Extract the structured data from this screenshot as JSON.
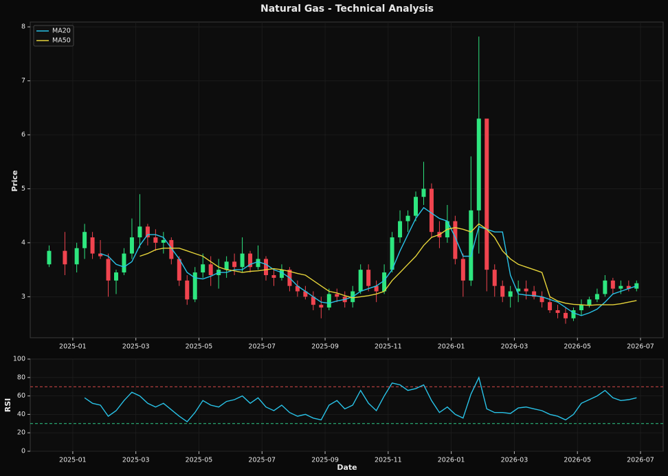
{
  "chart_data": [
    {
      "type": "candlestick",
      "title": "Natural Gas - Technical Analysis",
      "ylabel": "Price",
      "x": [
        "2024-12",
        "2024-12",
        "2025-01",
        "2025-01",
        "2025-01",
        "2025-01",
        "2025-02",
        "2025-02",
        "2025-02",
        "2025-02",
        "2025-03",
        "2025-03",
        "2025-03",
        "2025-03",
        "2025-04",
        "2025-04",
        "2025-04",
        "2025-04",
        "2025-05",
        "2025-05",
        "2025-05",
        "2025-05",
        "2025-06",
        "2025-06",
        "2025-06",
        "2025-06",
        "2025-07",
        "2025-07",
        "2025-07",
        "2025-07",
        "2025-08",
        "2025-08",
        "2025-08",
        "2025-08",
        "2025-09",
        "2025-09",
        "2025-09",
        "2025-09",
        "2025-10",
        "2025-10",
        "2025-10",
        "2025-10",
        "2025-11",
        "2025-11",
        "2025-11",
        "2025-11",
        "2025-12",
        "2025-12",
        "2025-12",
        "2025-12",
        "2026-01",
        "2026-01",
        "2026-01",
        "2026-01",
        "2026-02",
        "2026-02",
        "2026-02",
        "2026-02",
        "2026-03",
        "2026-03",
        "2026-03",
        "2026-03",
        "2026-04",
        "2026-04",
        "2026-04",
        "2026-04",
        "2026-05",
        "2026-05",
        "2026-05",
        "2026-05",
        "2026-06",
        "2026-06",
        "2026-06",
        "2026-06"
      ],
      "open": [
        3.6,
        3.85,
        3.6,
        3.9,
        4.1,
        3.8,
        3.7,
        3.3,
        3.45,
        3.8,
        4.1,
        4.3,
        4.1,
        4.0,
        4.05,
        3.7,
        3.3,
        2.95,
        3.45,
        3.6,
        3.4,
        3.5,
        3.65,
        3.55,
        3.8,
        3.55,
        3.7,
        3.4,
        3.35,
        3.5,
        3.2,
        3.1,
        3.0,
        2.85,
        2.8,
        3.05,
        3.0,
        2.9,
        3.1,
        3.5,
        3.2,
        3.1,
        3.5,
        4.1,
        4.4,
        4.5,
        4.85,
        5.0,
        4.2,
        4.1,
        4.4,
        3.7,
        3.3,
        4.6,
        6.3,
        3.5,
        3.2,
        3.0,
        3.1,
        3.15,
        3.1,
        3.0,
        2.9,
        2.75,
        2.7,
        2.6,
        2.75,
        2.85,
        2.95,
        3.05,
        3.3,
        3.15,
        3.2,
        3.15
      ],
      "high": [
        3.95,
        4.2,
        4.0,
        4.35,
        4.2,
        4.05,
        3.8,
        3.5,
        3.9,
        4.45,
        4.9,
        4.35,
        4.25,
        4.2,
        4.1,
        3.75,
        3.4,
        3.55,
        3.8,
        3.75,
        3.7,
        3.75,
        3.8,
        4.1,
        3.85,
        3.95,
        3.75,
        3.5,
        3.6,
        3.55,
        3.3,
        3.2,
        3.1,
        3.0,
        3.15,
        3.15,
        3.1,
        3.2,
        3.6,
        3.6,
        3.3,
        3.6,
        4.2,
        4.6,
        4.6,
        4.95,
        5.5,
        5.1,
        4.4,
        4.7,
        4.5,
        3.8,
        5.6,
        7.82,
        6.3,
        3.6,
        3.3,
        3.2,
        3.3,
        3.3,
        3.2,
        3.1,
        3.0,
        2.85,
        2.8,
        2.8,
        2.95,
        3.0,
        3.15,
        3.4,
        3.35,
        3.3,
        3.3,
        3.3
      ],
      "low": [
        3.55,
        3.4,
        3.45,
        3.7,
        3.7,
        3.7,
        3.0,
        3.05,
        3.4,
        3.7,
        3.9,
        3.95,
        3.85,
        3.8,
        3.6,
        3.2,
        2.85,
        2.9,
        3.35,
        3.2,
        3.15,
        3.35,
        3.4,
        3.45,
        3.45,
        3.5,
        3.3,
        3.2,
        3.3,
        3.1,
        3.0,
        2.95,
        2.75,
        2.6,
        2.75,
        2.9,
        2.8,
        2.8,
        3.05,
        3.1,
        2.9,
        3.05,
        3.45,
        4.0,
        4.2,
        4.4,
        4.7,
        4.1,
        3.9,
        4.0,
        3.6,
        3.0,
        3.2,
        3.8,
        3.1,
        3.0,
        2.9,
        2.8,
        2.9,
        2.95,
        2.95,
        2.8,
        2.7,
        2.6,
        2.5,
        2.55,
        2.65,
        2.8,
        2.9,
        3.0,
        3.05,
        3.05,
        3.1,
        3.1
      ],
      "close": [
        3.85,
        3.6,
        3.9,
        4.2,
        3.8,
        3.75,
        3.3,
        3.45,
        3.8,
        4.1,
        4.3,
        4.1,
        4.0,
        4.05,
        3.7,
        3.3,
        2.95,
        3.45,
        3.6,
        3.4,
        3.5,
        3.65,
        3.55,
        3.8,
        3.55,
        3.7,
        3.4,
        3.35,
        3.5,
        3.2,
        3.1,
        3.0,
        2.85,
        2.8,
        3.05,
        3.0,
        2.9,
        3.1,
        3.5,
        3.2,
        3.1,
        3.45,
        4.1,
        4.4,
        4.5,
        4.85,
        5.0,
        4.2,
        4.1,
        4.4,
        3.7,
        3.3,
        4.6,
        6.3,
        3.5,
        3.2,
        3.0,
        3.1,
        3.15,
        3.1,
        3.0,
        2.9,
        2.75,
        2.7,
        2.6,
        2.75,
        2.85,
        2.95,
        3.05,
        3.3,
        3.15,
        3.2,
        3.15,
        3.25
      ],
      "up_color": "#2ee67f",
      "down_color": "#f0444f",
      "series": [
        {
          "name": "MA20",
          "color": "#29c3e8",
          "values": [
            null,
            null,
            null,
            null,
            null,
            3.8,
            3.75,
            3.6,
            3.55,
            3.65,
            3.95,
            4.15,
            4.15,
            4.1,
            3.9,
            3.7,
            3.45,
            3.35,
            3.33,
            3.38,
            3.45,
            3.45,
            3.5,
            3.5,
            3.6,
            3.65,
            3.6,
            3.5,
            3.45,
            3.35,
            3.2,
            3.1,
            3.0,
            2.9,
            2.88,
            2.92,
            2.95,
            3.0,
            3.1,
            3.15,
            3.2,
            3.3,
            3.5,
            3.85,
            4.15,
            4.45,
            4.65,
            4.55,
            4.45,
            4.4,
            4.1,
            3.75,
            3.75,
            4.3,
            4.25,
            4.2,
            4.2,
            3.4,
            3.05,
            3.03,
            3.02,
            3.0,
            2.95,
            2.9,
            2.8,
            2.7,
            2.65,
            2.7,
            2.77,
            2.9,
            3.05,
            3.1,
            3.15,
            3.2
          ]
        },
        {
          "name": "MA50",
          "color": "#e6d43a",
          "values": [
            null,
            null,
            null,
            null,
            null,
            null,
            null,
            null,
            null,
            null,
            3.75,
            3.8,
            3.87,
            3.9,
            3.9,
            3.9,
            3.85,
            3.8,
            3.75,
            3.65,
            3.55,
            3.5,
            3.48,
            3.45,
            3.47,
            3.48,
            3.5,
            3.52,
            3.5,
            3.47,
            3.43,
            3.4,
            3.3,
            3.2,
            3.1,
            3.07,
            3.02,
            2.98,
            3.0,
            3.02,
            3.05,
            3.1,
            3.3,
            3.45,
            3.6,
            3.75,
            3.95,
            4.1,
            4.15,
            4.25,
            4.28,
            4.25,
            4.2,
            4.35,
            4.25,
            4.1,
            3.85,
            3.7,
            3.6,
            3.55,
            3.5,
            3.45,
            3.0,
            2.92,
            2.88,
            2.86,
            2.85,
            2.84,
            2.85,
            2.85,
            2.85,
            2.87,
            2.9,
            2.93
          ]
        }
      ],
      "legend": "upper left",
      "grid": true,
      "xlim": [
        "2024-12",
        "2026-07"
      ],
      "xticks": [
        "2025-01",
        "2025-03",
        "2025-05",
        "2025-07",
        "2025-09",
        "2025-11",
        "2026-01",
        "2026-03",
        "2026-05",
        "2026-07"
      ],
      "ylim": [
        2.24,
        8.09
      ],
      "yticks": [
        3,
        4,
        5,
        6,
        7,
        8
      ]
    },
    {
      "type": "line",
      "ylabel": "RSI",
      "xlabel": "Date",
      "color": "#29c3e8",
      "x": [
        "2024-12",
        "2024-12",
        "2025-01",
        "2025-01",
        "2025-01",
        "2025-01",
        "2025-02",
        "2025-02",
        "2025-02",
        "2025-02",
        "2025-03",
        "2025-03",
        "2025-03",
        "2025-03",
        "2025-04",
        "2025-04",
        "2025-04",
        "2025-04",
        "2025-05",
        "2025-05",
        "2025-05",
        "2025-05",
        "2025-06",
        "2025-06",
        "2025-06",
        "2025-06",
        "2025-07",
        "2025-07",
        "2025-07",
        "2025-07",
        "2025-08",
        "2025-08",
        "2025-08",
        "2025-08",
        "2025-09",
        "2025-09",
        "2025-09",
        "2025-09",
        "2025-10",
        "2025-10",
        "2025-10",
        "2025-10",
        "2025-11",
        "2025-11",
        "2025-11",
        "2025-11",
        "2025-12",
        "2025-12",
        "2025-12",
        "2025-12",
        "2026-01",
        "2026-01",
        "2026-01",
        "2026-01",
        "2026-02",
        "2026-02",
        "2026-02",
        "2026-02",
        "2026-03",
        "2026-03",
        "2026-03",
        "2026-03",
        "2026-04",
        "2026-04",
        "2026-04",
        "2026-04",
        "2026-05",
        "2026-05",
        "2026-05",
        "2026-05",
        "2026-06",
        "2026-06",
        "2026-06",
        "2026-06"
      ],
      "values": [
        null,
        null,
        null,
        58,
        52,
        50,
        38,
        44,
        55,
        64,
        60,
        52,
        48,
        52,
        45,
        38,
        32,
        42,
        55,
        50,
        48,
        54,
        56,
        60,
        52,
        58,
        48,
        44,
        50,
        42,
        38,
        40,
        36,
        34,
        50,
        55,
        46,
        50,
        66,
        52,
        44,
        60,
        74,
        72,
        66,
        68,
        72,
        55,
        42,
        48,
        40,
        36,
        62,
        80,
        46,
        42,
        42,
        41,
        47,
        48,
        46,
        44,
        40,
        38,
        34,
        40,
        52,
        56,
        60,
        66,
        58,
        55,
        56,
        58
      ],
      "hlines": [
        {
          "value": 70,
          "color": "#d94a4a"
        },
        {
          "value": 30,
          "color": "#2ecc8a"
        }
      ],
      "grid": true,
      "xlim": [
        "2024-12",
        "2026-07"
      ],
      "xticks": [
        "2025-01",
        "2025-03",
        "2025-05",
        "2025-07",
        "2025-09",
        "2025-11",
        "2026-01",
        "2026-03",
        "2026-05",
        "2026-07"
      ],
      "ylim": [
        0,
        100
      ],
      "yticks": [
        0,
        20,
        40,
        60,
        80,
        100
      ]
    }
  ]
}
